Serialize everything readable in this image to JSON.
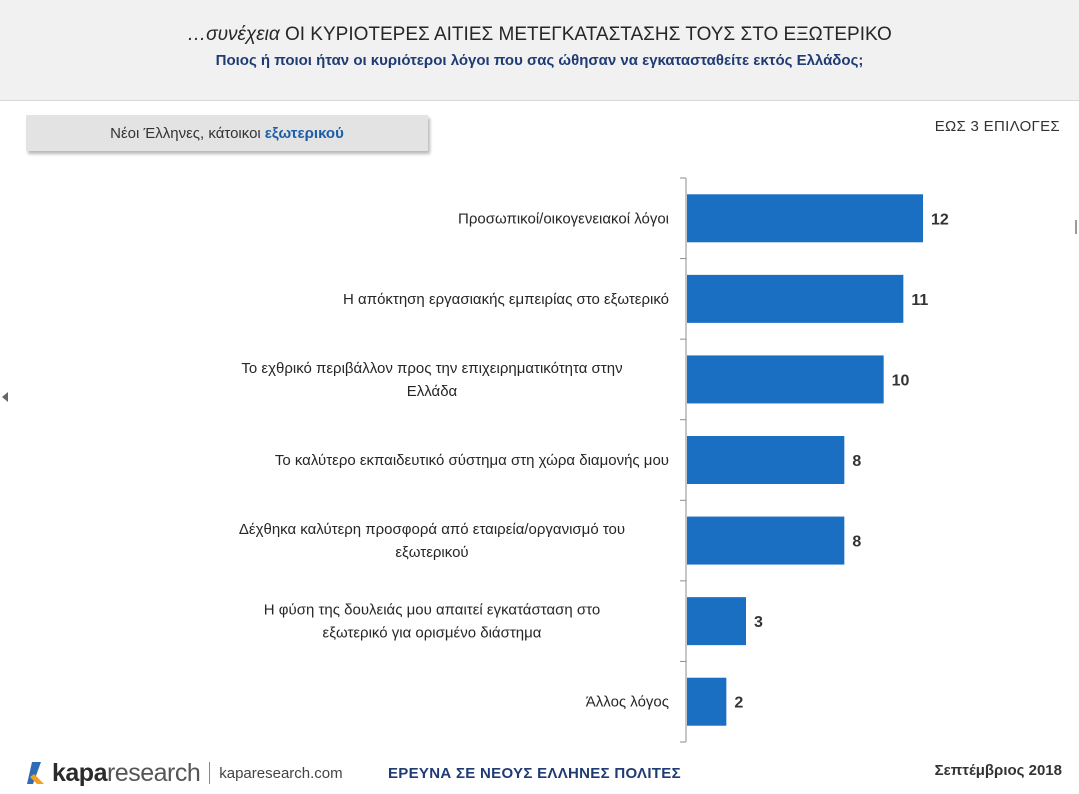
{
  "header": {
    "title_italic": "…συνέχεια",
    "title_main": "ΟΙ ΚΥΡΙΟΤΕΡΕΣ ΑΙΤΙΕΣ ΜΕΤΕΓΚΑΤΑΣΤΑΣΗΣ ΤΟΥΣ ΣΤΟ ΕΞΩΤΕΡΙΚΟ",
    "subtitle": "Ποιος ή ποιοι ήταν οι κυριότεροι λόγοι που σας ώθησαν να εγκατασταθείτε εκτός Ελλάδος;"
  },
  "segment": {
    "label": "Νέοι Έλληνες, κάτοικοι",
    "highlight": "εξωτερικού"
  },
  "choices_note": "ΕΩΣ 3 ΕΠΙΛΟΓΕΣ",
  "colors": {
    "bar": "#1a6fc2",
    "title_blue": "#1f3b74",
    "logo_blue": "#2e6db4",
    "logo_orange": "#f3a020"
  },
  "chart_data": {
    "type": "bar",
    "orientation": "horizontal",
    "categories": [
      "Προσωπικοί/οικογενειακοί λόγοι",
      "Η απόκτηση εργασιακής εμπειρίας στο εξωτερικό",
      "Το εχθρικό περιβάλλον προς την επιχειρηματικότητα στην Ελλάδα",
      "Το καλύτερο εκπαιδευτικό σύστημα στη χώρα διαμονής μου",
      "Δέχθηκα καλύτερη προσφορά από εταιρεία/οργανισμό του εξωτερικού",
      "Η φύση της δουλειάς μου απαιτεί εγκατάσταση στο εξωτερικό για ορισμένο διάστημα",
      "Άλλος λόγος"
    ],
    "label_lines": [
      [
        "Προσωπικοί/οικογενειακοί λόγοι"
      ],
      [
        "Η απόκτηση εργασιακής εμπειρίας στο εξωτερικό"
      ],
      [
        "Το εχθρικό περιβάλλον προς την επιχειρηματικότητα στην",
        "Ελλάδα"
      ],
      [
        "Το καλύτερο εκπαιδευτικό σύστημα στη χώρα διαμονής μου"
      ],
      [
        "Δέχθηκα καλύτερη προσφορά από εταιρεία/οργανισμό του",
        "εξωτερικού"
      ],
      [
        "Η φύση της δουλειάς μου απαιτεί εγκατάσταση στο",
        "εξωτερικό για ορισμένο διάστημα"
      ],
      [
        "Άλλος λόγος"
      ]
    ],
    "values": [
      12,
      11,
      10,
      8,
      8,
      3,
      2
    ],
    "xlim": [
      0,
      12
    ],
    "grid": false,
    "legend": "none"
  },
  "footer": {
    "logo_kapa": "kapa",
    "logo_research": "research",
    "logo_url": "kaparesearch.com",
    "center_text": "ΕΡΕΥΝΑ ΣΕ ΝΕΟΥΣ ΕΛΛΗΝΕΣ ΠΟΛΙΤΕΣ",
    "date": "Σεπτέμβριος 2018"
  }
}
